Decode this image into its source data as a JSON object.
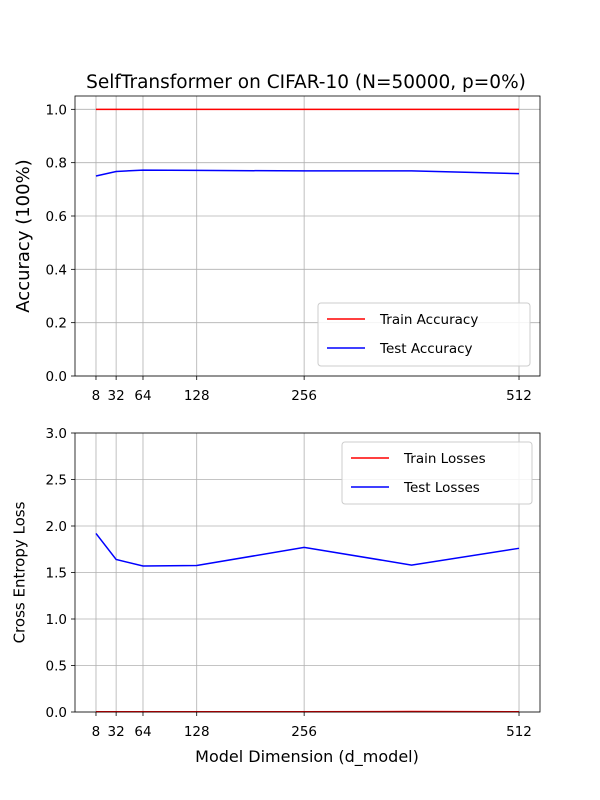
{
  "figure": {
    "title": "SelfTransformer on CIFAR-10 (N=50000, p=0%)",
    "xlabel": "Model Dimension (d_model)"
  },
  "chart_data": [
    {
      "type": "line",
      "title": "SelfTransformer on CIFAR-10 (N=50000, p=0%)",
      "xlabel": "",
      "ylabel": "Accuracy (100%)",
      "x": [
        8,
        32,
        64,
        128,
        256,
        384,
        512
      ],
      "xticks": [
        8,
        32,
        64,
        128,
        256,
        512
      ],
      "xlim": [
        -17,
        537
      ],
      "ylim": [
        0,
        1.05
      ],
      "yticks": [
        0.0,
        0.2,
        0.4,
        0.6,
        0.8,
        1.0
      ],
      "ytick_decimals": 1,
      "grid": true,
      "legend_position": "lower-right",
      "series": [
        {
          "name": "Train Accuracy",
          "color": "#ff0000",
          "values": [
            1.0,
            1.0,
            1.0,
            1.0,
            1.0,
            1.0,
            1.0
          ]
        },
        {
          "name": "Test Accuracy",
          "color": "#0000ff",
          "values": [
            0.75,
            0.767,
            0.772,
            0.771,
            0.769,
            0.769,
            0.759
          ]
        }
      ]
    },
    {
      "type": "line",
      "title": "",
      "xlabel": "Model Dimension (d_model)",
      "ylabel": "Cross Entropy Loss",
      "x": [
        8,
        32,
        64,
        128,
        256,
        384,
        512
      ],
      "xticks": [
        8,
        32,
        64,
        128,
        256,
        512
      ],
      "xlim": [
        -17,
        537
      ],
      "ylim": [
        0,
        3.0
      ],
      "yticks": [
        0.0,
        0.5,
        1.0,
        1.5,
        2.0,
        2.5,
        3.0
      ],
      "ytick_decimals": 1,
      "grid": true,
      "legend_position": "upper-right",
      "series": [
        {
          "name": "Train Losses",
          "color": "#ff0000",
          "values": [
            0.003,
            0.003,
            0.003,
            0.003,
            0.003,
            0.005,
            0.002
          ]
        },
        {
          "name": "Test Losses",
          "color": "#0000ff",
          "values": [
            1.92,
            1.64,
            1.57,
            1.575,
            1.77,
            1.58,
            1.76
          ]
        }
      ]
    }
  ]
}
